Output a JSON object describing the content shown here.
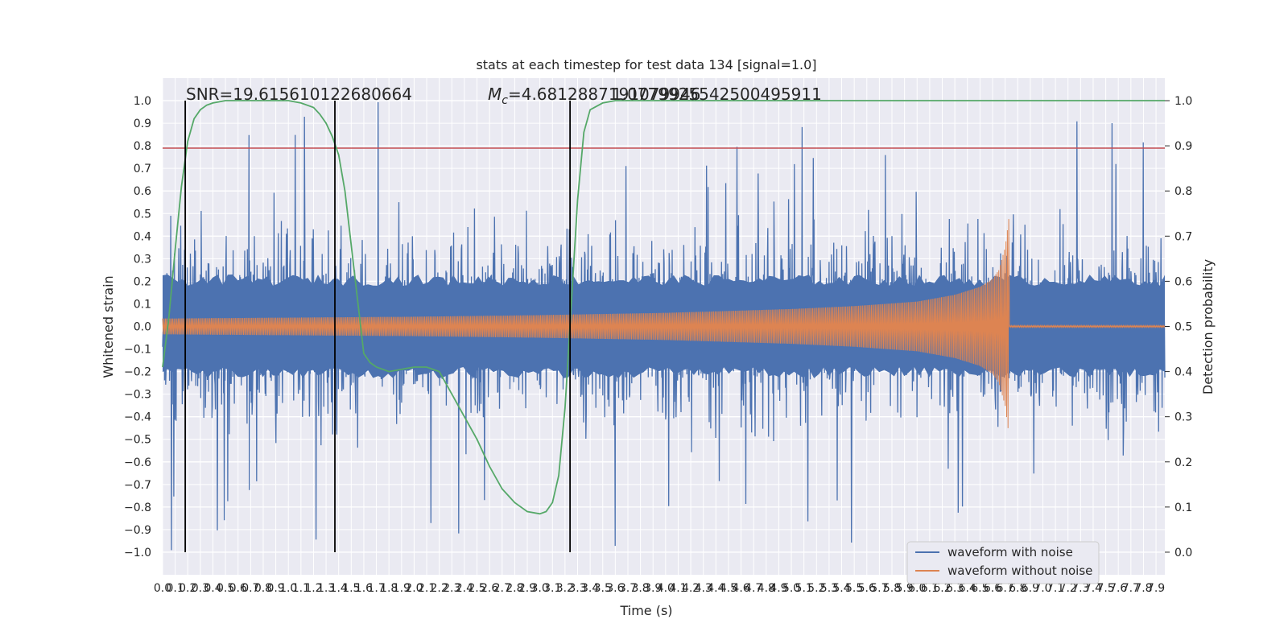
{
  "chart_data": {
    "type": "line",
    "title": "stats at each timestep for test data 134 [signal=1.0]",
    "xlabel": "Time (s)",
    "ylabel": "Whitened strain",
    "y2label": "Detection probability",
    "xlim": [
      0.0,
      7.97
    ],
    "ylim": [
      -1.1,
      1.1
    ],
    "y2lim": [
      -0.05,
      1.05
    ],
    "x_ticks": [
      0.0,
      0.1,
      0.2,
      0.3,
      0.4,
      0.5,
      0.6,
      0.7,
      0.8,
      0.9,
      1.0,
      1.1,
      1.2,
      1.3,
      1.4,
      1.5,
      1.6,
      1.7,
      1.8,
      1.9,
      2.0,
      2.1,
      2.2,
      2.3,
      2.4,
      2.5,
      2.6,
      2.7,
      2.8,
      2.9,
      3.0,
      3.1,
      3.2,
      3.3,
      3.4,
      3.5,
      3.6,
      3.7,
      3.8,
      3.9,
      4.0,
      4.1,
      4.2,
      4.3,
      4.4,
      4.5,
      4.6,
      4.7,
      4.8,
      4.9,
      5.0,
      5.1,
      5.2,
      5.3,
      5.4,
      5.5,
      5.6,
      5.7,
      5.8,
      5.9,
      6.0,
      6.1,
      6.2,
      6.3,
      6.4,
      6.5,
      6.6,
      6.7,
      6.8,
      6.9,
      7.0,
      7.1,
      7.2,
      7.3,
      7.4,
      7.5,
      7.6,
      7.7,
      7.8,
      7.9
    ],
    "y_ticks": [
      -1.0,
      -0.9,
      -0.8,
      -0.7,
      -0.6,
      -0.5,
      -0.4,
      -0.3,
      -0.2,
      -0.1,
      0.0,
      0.1,
      0.2,
      0.3,
      0.4,
      0.5,
      0.6,
      0.7,
      0.8,
      0.9,
      1.0
    ],
    "y2_ticks": [
      0.0,
      0.1,
      0.2,
      0.3,
      0.4,
      0.5,
      0.6,
      0.7,
      0.8,
      0.9,
      1.0
    ],
    "grid": true,
    "legend": "lower-right",
    "annotations": {
      "snr": "SNR=19.615610122680664",
      "mc_symbol": "M",
      "mc_sub": "c",
      "mc_value": "=4.6812887191079946",
      "mc_overlap": "1.0779925542500495911"
    },
    "vlines": [
      0.18,
      1.37,
      3.24
    ],
    "vline_y_range": [
      -1.0,
      1.0
    ],
    "threshold_line_y": 0.79,
    "merger_time": 6.73,
    "series": [
      {
        "name": "waveform with noise",
        "color": "#4c72b0",
        "description_envelope": {
          "rms": 0.2,
          "peak_max": 1.0,
          "peak_min": -1.0
        }
      },
      {
        "name": "waveform without noise",
        "color": "#dd8452",
        "envelope": {
          "x": [
            0.0,
            1.0,
            2.0,
            3.0,
            4.0,
            5.0,
            5.5,
            6.0,
            6.3,
            6.5,
            6.6,
            6.65,
            6.7,
            6.73
          ],
          "y": [
            0.035,
            0.039,
            0.043,
            0.05,
            0.06,
            0.077,
            0.09,
            0.11,
            0.14,
            0.175,
            0.21,
            0.25,
            0.35,
            0.48
          ]
        }
      },
      {
        "name": "detection probability",
        "color": "#55a868",
        "axis": "right",
        "x": [
          0.0,
          0.05,
          0.1,
          0.15,
          0.2,
          0.25,
          0.3,
          0.35,
          0.4,
          0.5,
          0.6,
          0.7,
          0.8,
          1.0,
          1.1,
          1.2,
          1.25,
          1.3,
          1.35,
          1.4,
          1.45,
          1.5,
          1.55,
          1.6,
          1.65,
          1.7,
          1.8,
          1.9,
          2.0,
          2.1,
          2.2,
          2.3,
          2.4,
          2.5,
          2.6,
          2.7,
          2.8,
          2.9,
          3.0,
          3.05,
          3.1,
          3.15,
          3.2,
          3.25,
          3.3,
          3.35,
          3.4,
          3.5,
          3.6,
          4.0,
          5.0,
          6.0,
          7.0,
          7.97
        ],
        "y": [
          0.41,
          0.52,
          0.67,
          0.81,
          0.91,
          0.96,
          0.98,
          0.99,
          0.995,
          1.0,
          1.0,
          1.0,
          1.0,
          1.0,
          0.995,
          0.985,
          0.97,
          0.95,
          0.92,
          0.88,
          0.8,
          0.68,
          0.56,
          0.44,
          0.42,
          0.41,
          0.4,
          0.405,
          0.41,
          0.41,
          0.4,
          0.35,
          0.3,
          0.25,
          0.19,
          0.14,
          0.11,
          0.09,
          0.085,
          0.09,
          0.11,
          0.17,
          0.32,
          0.55,
          0.78,
          0.93,
          0.98,
          0.995,
          1.0,
          1.0,
          1.0,
          1.0,
          1.0,
          1.0
        ]
      }
    ]
  },
  "legend": {
    "entries": [
      {
        "label": "waveform with noise",
        "color": "#4c72b0"
      },
      {
        "label": "waveform without noise",
        "color": "#dd8452"
      }
    ]
  },
  "colors": {
    "plot_bg": "#eaeaf2",
    "grid": "#ffffff",
    "threshold": "#c44e52",
    "vline": "#000000",
    "detection": "#55a868"
  }
}
